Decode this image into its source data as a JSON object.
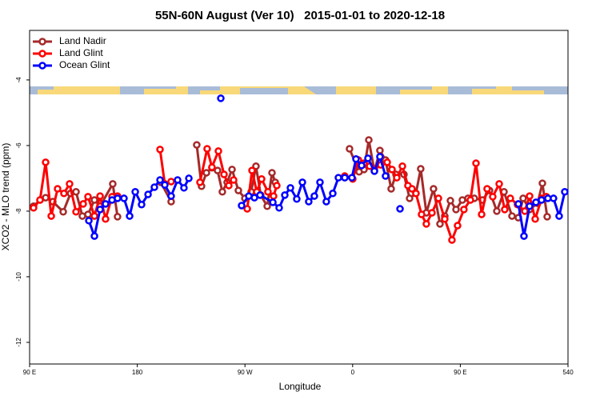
{
  "chart_data": {
    "type": "line",
    "title": "55N-60N August (Ver 10)   2015-01-01 to 2020-12-18",
    "x_label": "Longitude",
    "y_label": "XCO2 - MLO trend (ppm)",
    "xlim": [
      90,
      540
    ],
    "ylim": [
      -12.66,
      -2.49
    ],
    "xticks": [
      {
        "value": 90,
        "label": "90 E"
      },
      180,
      {
        "value": 270,
        "label": "90 W"
      },
      {
        "value": 360,
        "label": "0"
      },
      {
        "value": 450,
        "label": "90 E"
      },
      540
    ],
    "yticks": [
      -4,
      -6,
      -8,
      -10,
      -12
    ],
    "legend": "top-left",
    "series": [
      {
        "name": "Land Nadir",
        "color": "#a52a2a",
        "x": [
          93.3,
          98.7,
          103.4,
          109.4,
          118.1,
          124.2,
          128.8,
          134.1,
          138.8,
          144.2,
          148.9,
          159.5,
          163.5,
          null,
          199.6,
          208.3,
          null,
          229.7,
          233.7,
          237.8,
          242.4,
          247.1,
          251.1,
          255.1,
          259.2,
          264.5,
          269.9,
          275.2,
          279.2,
          283.2,
          288.6,
          292.6,
          295.3,
          null,
          357.4,
          365.4,
          369.5,
          373.5,
          378.2,
          382.8,
          387.5,
          392.2,
          396.2,
          402.9,
          407.6,
          412.9,
          416.9,
          421.6,
          427.6,
          433.0,
          437.0,
          441.7,
          446.4,
          451.7,
          456.4,
          461.7,
          468.4,
          474.4,
          480.5,
          486.5,
          493.2,
          498.5,
          502.5,
          507.9,
          514.6,
          518.6,
          522.6
        ],
        "values": [
          -7.85,
          -7.66,
          -7.59,
          -7.71,
          -8.02,
          -7.46,
          -7.41,
          -8.15,
          -8.1,
          -7.66,
          -7.85,
          -7.17,
          -8.17,
          null,
          -7.12,
          -7.71,
          null,
          -5.98,
          -7.24,
          -6.83,
          -6.68,
          -6.76,
          -7.41,
          -7.12,
          -6.73,
          -7.37,
          -7.61,
          -7.41,
          -6.63,
          -7.51,
          -7.85,
          -6.83,
          -7.12,
          null,
          -6.1,
          -6.8,
          -6.73,
          -5.83,
          -6.78,
          -6.15,
          -6.44,
          -7.32,
          -6.88,
          -6.88,
          -7.61,
          -7.46,
          -6.71,
          -8.05,
          -7.32,
          -8.39,
          -8.15,
          -7.68,
          -7.95,
          -7.66,
          -7.61,
          -7.61,
          -7.66,
          -7.37,
          -8.0,
          -7.41,
          -8.15,
          -8.2,
          -7.61,
          -7.95,
          -7.76,
          -7.15,
          -8.17
        ]
      },
      {
        "name": "Land Glint",
        "color": "#ff0000",
        "x": [
          93.3,
          98.7,
          103.4,
          108.1,
          113.4,
          118.7,
          123.4,
          128.8,
          134.8,
          138.8,
          144.2,
          148.9,
          153.5,
          158.9,
          163.5,
          null,
          199.0,
          203.0,
          208.3,
          null,
          232.4,
          238.4,
          242.4,
          247.8,
          252.5,
          256.5,
          260.5,
          null,
          271.9,
          275.9,
          279.9,
          283.9,
          289.2,
          293.9,
          296.6,
          null,
          353.4,
          360.1,
          364.8,
          369.5,
          374.2,
          378.2,
          383.5,
          388.9,
          392.9,
          396.9,
          401.6,
          406.2,
          409.6,
          412.9,
          417.6,
          421.6,
          426.3,
          431.7,
          437.0,
          443.0,
          447.7,
          453.0,
          458.4,
          463.1,
          467.8,
          472.4,
          477.1,
          482.5,
          487.1,
          491.8,
          497.8,
          503.9,
          507.9,
          512.6,
          517.9,
          521.9
        ],
        "values": [
          -7.9,
          -7.66,
          -6.51,
          -8.15,
          -7.32,
          -7.46,
          -7.17,
          -8.02,
          -7.78,
          -7.56,
          -8.15,
          -7.54,
          -8.24,
          -7.56,
          -7.54,
          null,
          -6.12,
          -7.17,
          -7.1,
          null,
          -7.12,
          -6.1,
          -6.66,
          -6.17,
          -6.88,
          -7.22,
          -7.05,
          null,
          -7.93,
          -6.76,
          -7.41,
          -7.02,
          -7.41,
          -7.54,
          -7.22,
          null,
          -6.93,
          -7.02,
          -6.44,
          -6.54,
          -6.63,
          -6.73,
          -6.59,
          -6.51,
          -6.73,
          -6.98,
          -6.63,
          -7.22,
          -7.32,
          -7.46,
          -8.1,
          -8.39,
          -8.05,
          -7.61,
          -8.24,
          -8.88,
          -8.44,
          -7.95,
          -7.66,
          -6.54,
          -8.1,
          -7.32,
          -7.56,
          -7.17,
          -7.95,
          -7.61,
          -7.8,
          -8.0,
          -7.54,
          -8.24,
          -7.61,
          -7.56
        ]
      },
      {
        "name": "Ocean Glint",
        "color": "#0000ff",
        "x": [
          139.5,
          144.2,
          148.9,
          153.5,
          158.9,
          163.5,
          168.9,
          173.6,
          178.3,
          183.6,
          189.0,
          194.3,
          199.0,
          203.0,
          208.3,
          213.7,
          219.0,
          223.1,
          null,
          249.8,
          null,
          267.2,
          273.2,
          277.9,
          282.6,
          293.3,
          298.6,
          303.3,
          308.0,
          313.3,
          318.0,
          323.3,
          328.0,
          332.7,
          338.0,
          343.4,
          348.1,
          353.4,
          359.4,
          362.8,
          367.5,
          372.8,
          378.2,
          382.8,
          387.5,
          null,
          399.6,
          null,
          498.5,
          503.2,
          507.9,
          513.2,
          517.9,
          523.2,
          527.9,
          532.6,
          537.3
        ],
        "values": [
          -8.29,
          -8.76,
          -7.95,
          -7.78,
          -7.66,
          -7.61,
          -7.61,
          -8.15,
          -7.41,
          -7.8,
          -7.49,
          -7.27,
          -7.05,
          -7.2,
          -7.54,
          -7.05,
          -7.29,
          -7.0,
          null,
          -4.56,
          null,
          -7.83,
          -7.54,
          -7.59,
          -7.51,
          -7.73,
          -7.9,
          -7.51,
          -7.29,
          -7.63,
          -7.12,
          -7.71,
          -7.54,
          -7.12,
          -7.71,
          -7.46,
          -6.98,
          -6.98,
          -6.98,
          -6.41,
          -6.61,
          -6.39,
          -6.78,
          -6.34,
          -6.93,
          null,
          -7.93,
          null,
          -7.78,
          -8.76,
          -7.85,
          -7.73,
          -7.66,
          -7.61,
          -7.61,
          -8.15,
          -7.41
        ]
      }
    ]
  }
}
